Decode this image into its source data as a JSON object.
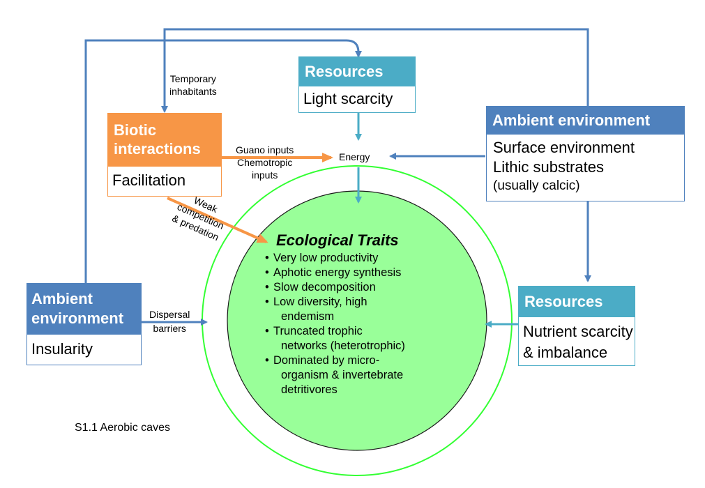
{
  "boxes": {
    "resources_top": {
      "header": "Resources",
      "body": [
        "Light scarcity"
      ]
    },
    "biotic": {
      "header": [
        "Biotic",
        "interactions"
      ],
      "body": [
        "Facilitation"
      ]
    },
    "ambient_right": {
      "header": "Ambient environment",
      "body": [
        "Surface environment",
        "Lithic substrates",
        "(usually calcic)"
      ]
    },
    "ambient_left": {
      "header": [
        "Ambient",
        "environment"
      ],
      "body": [
        "Insularity"
      ]
    },
    "resources_right": {
      "header": "Resources",
      "body": [
        "Nutrient scarcity",
        "& imbalance"
      ]
    }
  },
  "labels": {
    "temporary": [
      "Temporary",
      "inhabitants"
    ],
    "energy": "Energy",
    "guano": [
      "Guano  inputs",
      "Chemotropic",
      "inputs"
    ],
    "weak": [
      "Weak",
      "competition",
      "& predation"
    ],
    "dispersal": [
      "Dispersal",
      "barriers"
    ]
  },
  "traits": {
    "title": "Ecological Traits",
    "items": [
      "Very low productivity",
      "Aphotic energy synthesis",
      "Slow decomposition",
      "Low diversity, high",
      "endemism",
      "Truncated trophic",
      "networks (heterotrophic)",
      "Dominated by micro-",
      "organism & invertebrate",
      "detritivores"
    ]
  },
  "caption": "S1.1 Aerobic caves",
  "colors": {
    "ambient": "#4F81BD",
    "resources": "#4BACC6",
    "biotic": "#F79646",
    "circle_fill": "#99FF99",
    "circle_ring": "#33FF33",
    "blue_arrow": "#4F81BD",
    "teal_arrow": "#4BACC6",
    "orange_arrow": "#F79646"
  }
}
